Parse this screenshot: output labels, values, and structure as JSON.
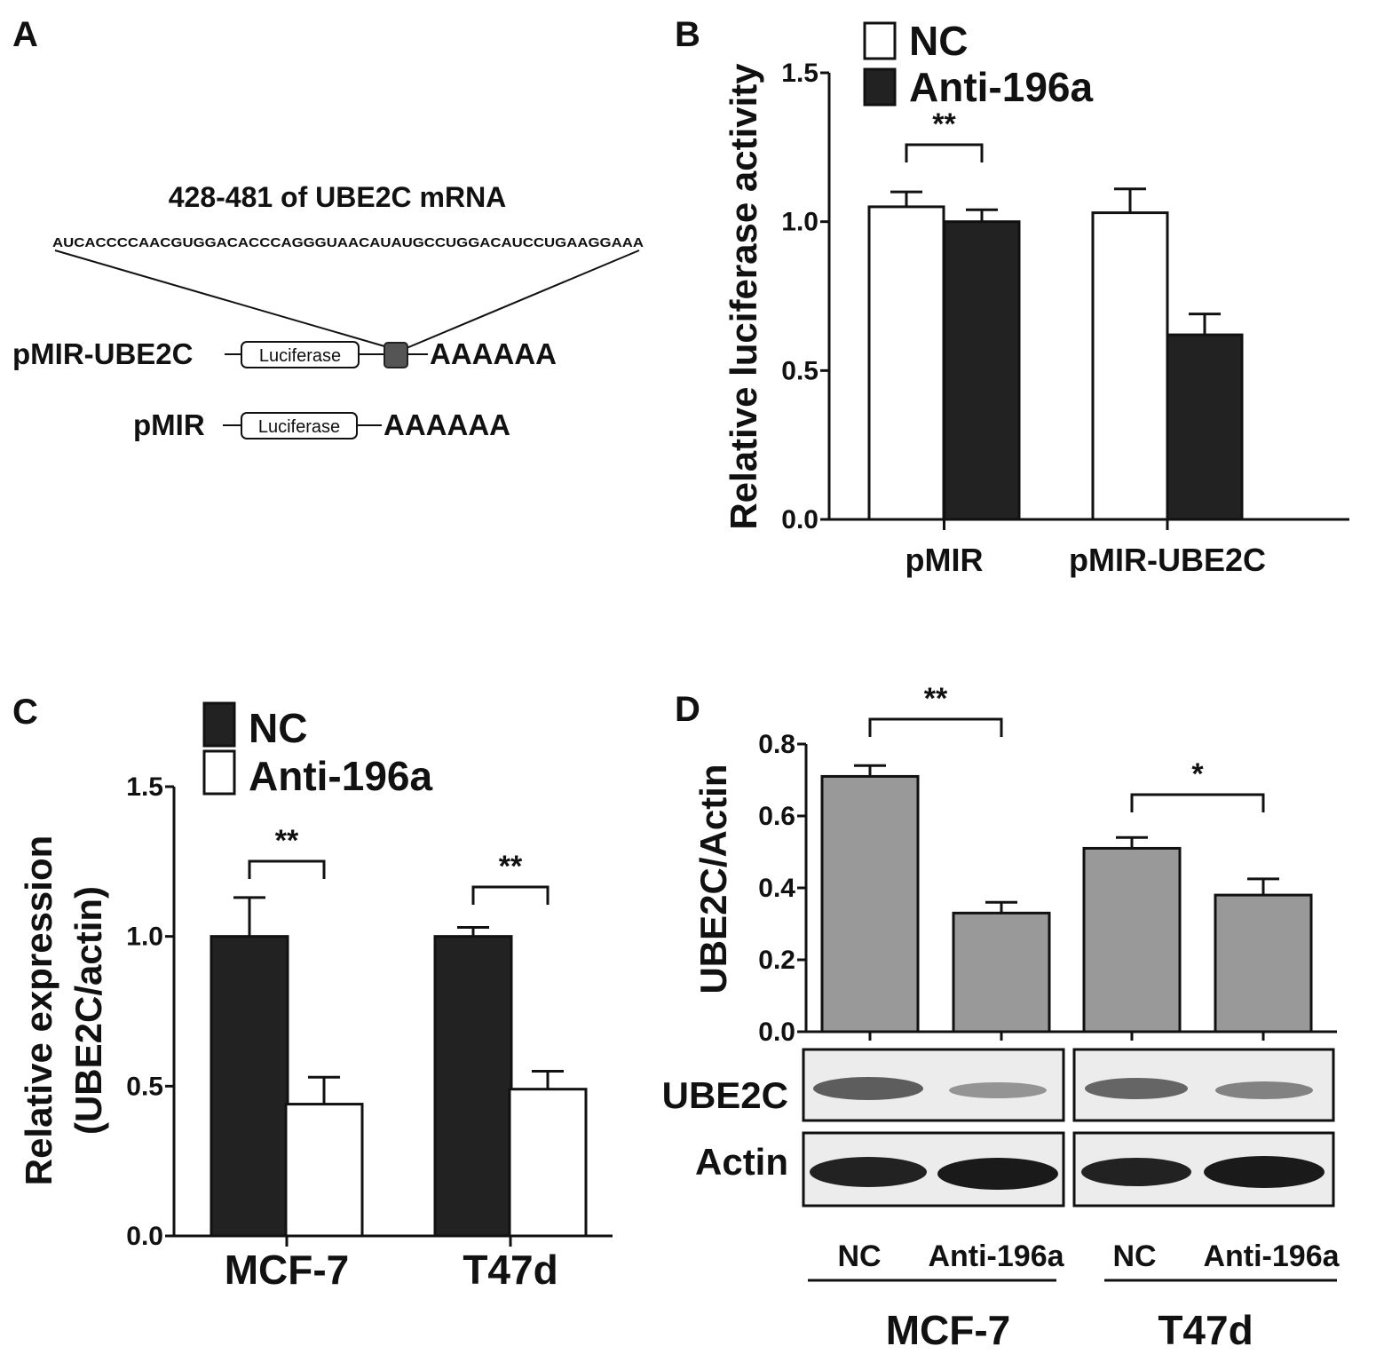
{
  "panel_A": {
    "letter": "A",
    "region_title": "428-481 of UBE2C mRNA",
    "sequence": "AUCACCCCAACGUGGACACCCAGGGUAACAUAUGCCUGGACAUCCUGAAGGAAA",
    "construct_1": {
      "name": "pMIR-UBE2C",
      "box": "Luciferase",
      "tail": "AAAAAA"
    },
    "construct_2": {
      "name": "pMIR",
      "box": "Luciferase",
      "tail": "AAAAAA"
    }
  },
  "panel_D_blot": {
    "row_labels": [
      "UBE2C",
      "Actin"
    ],
    "lane_labels": [
      "NC",
      "Anti-196a",
      "NC",
      "Anti-196a"
    ],
    "group_labels": [
      "MCF-7",
      "T47d"
    ]
  },
  "colors": {
    "nc_fill_B": "#ffffff",
    "anti_fill_B": "#222222",
    "nc_fill_C": "#222222",
    "anti_fill_C": "#ffffff",
    "bar_D": "#999999"
  },
  "chart_data": [
    {
      "panel": "B",
      "type": "bar",
      "ylabel": "Relative luciferase activity",
      "categories": [
        "pMIR",
        "pMIR-UBE2C"
      ],
      "series": [
        {
          "name": "NC",
          "values": [
            1.05,
            1.03
          ],
          "errors": [
            0.05,
            0.08
          ]
        },
        {
          "name": "Anti-196a",
          "values": [
            1.0,
            0.62
          ],
          "errors": [
            0.04,
            0.07
          ]
        }
      ],
      "ylim": [
        0,
        1.5
      ],
      "yticks": [
        "0.0",
        "0.5",
        "1.0",
        "1.5"
      ],
      "significance": [
        "**"
      ],
      "legend": "top-left"
    },
    {
      "panel": "C",
      "type": "bar",
      "ylabel": [
        "Relative expression",
        "(UBE2C/actin)"
      ],
      "categories": [
        "MCF-7",
        "T47d"
      ],
      "series": [
        {
          "name": "NC",
          "values": [
            1.0,
            1.0
          ],
          "errors": [
            0.13,
            0.03
          ]
        },
        {
          "name": "Anti-196a",
          "values": [
            0.44,
            0.49
          ],
          "errors": [
            0.09,
            0.06
          ]
        }
      ],
      "ylim": [
        0,
        1.5
      ],
      "yticks": [
        "0.0",
        "0.5",
        "1.0",
        "1.5"
      ],
      "significance": [
        "**",
        "**"
      ],
      "legend": "top-left"
    },
    {
      "panel": "D",
      "type": "bar",
      "ylabel": "UBE2C/Actin",
      "categories": [
        "NC",
        "Anti-196a",
        "NC",
        "Anti-196a"
      ],
      "values": [
        0.71,
        0.33,
        0.51,
        0.38
      ],
      "errors": [
        0.03,
        0.03,
        0.03,
        0.045
      ],
      "ylim": [
        0,
        0.8
      ],
      "yticks": [
        "0.0",
        "0.2",
        "0.4",
        "0.6",
        "0.8"
      ],
      "significance": [
        "**",
        "*"
      ]
    }
  ]
}
